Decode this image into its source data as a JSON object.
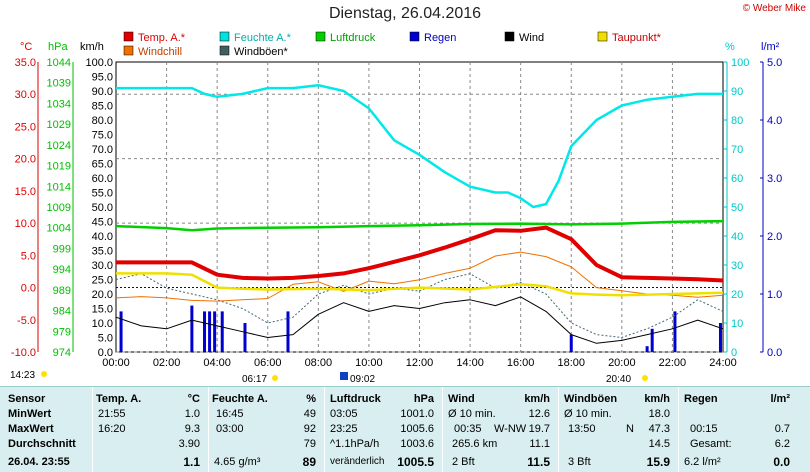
{
  "page": {
    "title": "Dienstag, 26.04.2016",
    "credit": "© Weber Mike"
  },
  "chart_data": {
    "type": "line",
    "title": "Dienstag, 26.04.2016",
    "x_ticks": [
      "00:00",
      "02:00",
      "04:00",
      "06:00",
      "08:00",
      "10:00",
      "12:00",
      "14:00",
      "16:00",
      "18:00",
      "20:00",
      "22:00",
      "24:00"
    ],
    "axes": {
      "temp": {
        "unit": "°C",
        "ticks": [
          "35.0",
          "30.0",
          "25.0",
          "20.0",
          "15.0",
          "10.0",
          "5.0",
          "0.0",
          "-5.0",
          "-10.0"
        ],
        "color": "#e00000"
      },
      "pressure": {
        "unit": "hPa",
        "ticks": [
          "1044",
          "1039",
          "1034",
          "1029",
          "1024",
          "1019",
          "1014",
          "1009",
          "1004",
          "999",
          "994",
          "989",
          "984",
          "979",
          "974"
        ],
        "color": "#00c000"
      },
      "wind": {
        "unit": "km/h",
        "ticks": [
          "100.0",
          "95.0",
          "90.0",
          "85.0",
          "80.0",
          "75.0",
          "70.0",
          "65.0",
          "60.0",
          "55.0",
          "50.0",
          "45.0",
          "40.0",
          "35.0",
          "30.0",
          "25.0",
          "20.0",
          "15.0",
          "10.0",
          "5.0",
          "0.0"
        ],
        "color": "#000000"
      },
      "humidity": {
        "unit": "%",
        "ticks": [
          "100",
          "90",
          "80",
          "70",
          "60",
          "50",
          "40",
          "30",
          "20",
          "10",
          "0"
        ],
        "color": "#00c8c8"
      },
      "rain": {
        "unit": "l/m²",
        "ticks": [
          "5.0",
          "4.0",
          "3.0",
          "2.0",
          "1.0",
          "0.0"
        ],
        "color": "#0000c0"
      }
    },
    "legend": [
      {
        "name": "Temp. A.*",
        "color": "#e00000"
      },
      {
        "name": "Feuchte A.*",
        "color": "#00e0e0"
      },
      {
        "name": "Luftdruck",
        "color": "#00d000"
      },
      {
        "name": "Regen",
        "color": "#0000d0"
      },
      {
        "name": "Wind",
        "color": "#000000"
      },
      {
        "name": "Taupunkt*",
        "color": "#f0e000"
      },
      {
        "name": "Windchill",
        "color": "#f07000"
      },
      {
        "name": "Windböen*",
        "color": "#406060"
      }
    ],
    "series": [
      {
        "name": "Temp. A.*",
        "axis": "temp",
        "x": [
          0,
          1,
          2,
          3,
          4,
          5,
          6,
          7,
          8,
          9,
          10,
          11,
          12,
          13,
          14,
          15,
          16,
          17,
          18,
          19,
          20,
          21,
          22,
          23,
          24
        ],
        "y": [
          3.9,
          3.9,
          3.9,
          3.9,
          2.0,
          1.5,
          1.4,
          1.5,
          1.8,
          2.2,
          3.0,
          4.0,
          5.0,
          6.2,
          7.5,
          8.9,
          8.8,
          9.3,
          7.5,
          3.5,
          1.6,
          1.5,
          1.4,
          1.3,
          1.1
        ]
      },
      {
        "name": "Feuchte A.*",
        "axis": "humidity",
        "x": [
          0,
          1,
          2,
          3,
          3.5,
          4,
          5,
          6,
          7,
          8,
          9,
          10,
          11,
          12,
          13,
          14,
          15,
          15.5,
          16,
          16.5,
          17,
          17.5,
          18,
          19,
          20,
          21,
          22,
          23,
          24
        ],
        "y": [
          91,
          91,
          91,
          91,
          89,
          88,
          89,
          91,
          91,
          92,
          90,
          84,
          73,
          68,
          62,
          57,
          55,
          55,
          53,
          50,
          51,
          59,
          71,
          80,
          85,
          87,
          88,
          89,
          89
        ]
      },
      {
        "name": "Luftdruck",
        "axis": "pressure",
        "x": [
          0,
          2,
          3,
          4,
          6,
          8,
          10,
          12,
          14,
          16,
          18,
          20,
          22,
          24
        ],
        "y": [
          1004.4,
          1003.9,
          1003.4,
          1003.8,
          1004.0,
          1004.1,
          1004.4,
          1004.6,
          1004.9,
          1005.0,
          1004.8,
          1005.0,
          1005.4,
          1005.6
        ]
      },
      {
        "name": "Taupunkt*",
        "axis": "temp",
        "x": [
          0,
          1,
          2,
          3,
          4,
          5,
          6,
          8,
          10,
          12,
          14,
          16,
          17,
          18,
          19,
          20,
          22,
          24
        ],
        "y": [
          2.2,
          2.2,
          2.2,
          2.0,
          0.0,
          -0.2,
          -0.3,
          -0.2,
          -0.4,
          0.0,
          -0.3,
          0.5,
          0.2,
          -0.9,
          -1.1,
          -1.2,
          -1.0,
          -0.8
        ]
      },
      {
        "name": "Wind",
        "axis": "wind",
        "x": [
          0,
          1,
          2,
          3,
          4,
          5,
          6,
          7,
          8,
          9,
          10,
          11,
          12,
          13,
          14,
          15,
          16,
          17,
          18,
          19,
          20,
          21,
          22,
          23,
          24
        ],
        "y": [
          12,
          9,
          8,
          11,
          9,
          7,
          5,
          6,
          13,
          17,
          14,
          16,
          15,
          17,
          18,
          16,
          19,
          14,
          6,
          3,
          4,
          6,
          8,
          11,
          8
        ]
      },
      {
        "name": "Windböen*",
        "axis": "wind",
        "x": [
          0,
          1,
          2,
          3,
          4,
          5,
          6,
          7,
          8,
          9,
          10,
          11,
          12,
          13,
          14,
          15,
          16,
          17,
          18,
          19,
          20,
          21,
          22,
          23,
          24
        ],
        "y": [
          25,
          27,
          22,
          20,
          18,
          15,
          10,
          12,
          20,
          23,
          20,
          22,
          21,
          25,
          27,
          22,
          24,
          20,
          10,
          6,
          5,
          8,
          12,
          18,
          14
        ]
      },
      {
        "name": "Windchill",
        "axis": "temp",
        "x": [
          0,
          1,
          2,
          3,
          4,
          5,
          6,
          7,
          8,
          9,
          10,
          11,
          12,
          13,
          14,
          15,
          16,
          17,
          18,
          19,
          20,
          21,
          22,
          23,
          24
        ],
        "y": [
          -1.6,
          -1.4,
          -1.6,
          -2.0,
          -2.1,
          -1.9,
          -1.7,
          0.5,
          0.9,
          -0.6,
          1.0,
          0.6,
          1.2,
          2.2,
          3.0,
          4.9,
          5.5,
          4.8,
          3.2,
          0.0,
          -0.5,
          -1.0,
          -1.2,
          -1.5,
          -1.2
        ]
      },
      {
        "name": "Regen",
        "axis": "rain",
        "type": "bar",
        "x": [
          0.2,
          3.0,
          3.5,
          3.7,
          3.9,
          4.2,
          5.1,
          6.8,
          18.0,
          21.0,
          21.2,
          22.1,
          23.9
        ],
        "y": [
          0.7,
          0.8,
          0.7,
          0.7,
          0.7,
          0.7,
          0.5,
          0.7,
          0.3,
          0.1,
          0.4,
          0.7,
          0.5
        ]
      }
    ],
    "markers": [
      {
        "label": "14:23"
      },
      {
        "label": "06:17"
      },
      {
        "label": "09:02"
      },
      {
        "label": "20:40"
      }
    ]
  },
  "summary": {
    "rows": [
      "Sensor",
      "MinWert",
      "MaxWert",
      "Durchschnitt",
      "26.04. 23:55"
    ],
    "temp": {
      "header": "Temp. A.",
      "unit": "°C",
      "min_time": "21:55",
      "min": "1.0",
      "max_time": "16:20",
      "max": "9.3",
      "avg": "3.90",
      "cur": "1.1"
    },
    "hum": {
      "header": "Feuchte A.",
      "unit": "%",
      "min_time": "16:45",
      "min": "49",
      "max_time": "03:00",
      "max": "92",
      "avg": "79",
      "cur_extra": "4.65 g/m³",
      "cur": "89"
    },
    "press": {
      "header": "Luftdruck",
      "unit": "hPa",
      "min_time": "03:05",
      "min": "1001.0",
      "max_time": "23:25",
      "max": "1005.6",
      "avg_label": "^1.1hPa/h",
      "avg": "1003.6",
      "cur_label": "veränderlich",
      "cur": "1005.5"
    },
    "wind": {
      "header": "Wind",
      "unit": "km/h",
      "min_label": "Ø 10 min.",
      "min": "12.6",
      "max_time": "00:35",
      "max_dir": "W-NW",
      "max": "19.7",
      "avg_label": "265.6 km",
      "avg": "11.1",
      "cur_label": "2 Bft",
      "cur": "11.5"
    },
    "gust": {
      "header": "Windböen",
      "unit": "km/h",
      "min_label": "Ø 10 min.",
      "min": "18.0",
      "max_time": "13:50",
      "max_dir": "N",
      "max": "47.3",
      "avg": "14.5",
      "cur_label": "3 Bft",
      "cur": "15.9"
    },
    "rain": {
      "header": "Regen",
      "unit": "l/m²",
      "max_time": "00:15",
      "max": "0.7",
      "avg_label": "Gesamt:",
      "avg": "6.2",
      "cur_label": "6.2 l/m²",
      "cur": "0.0"
    }
  }
}
